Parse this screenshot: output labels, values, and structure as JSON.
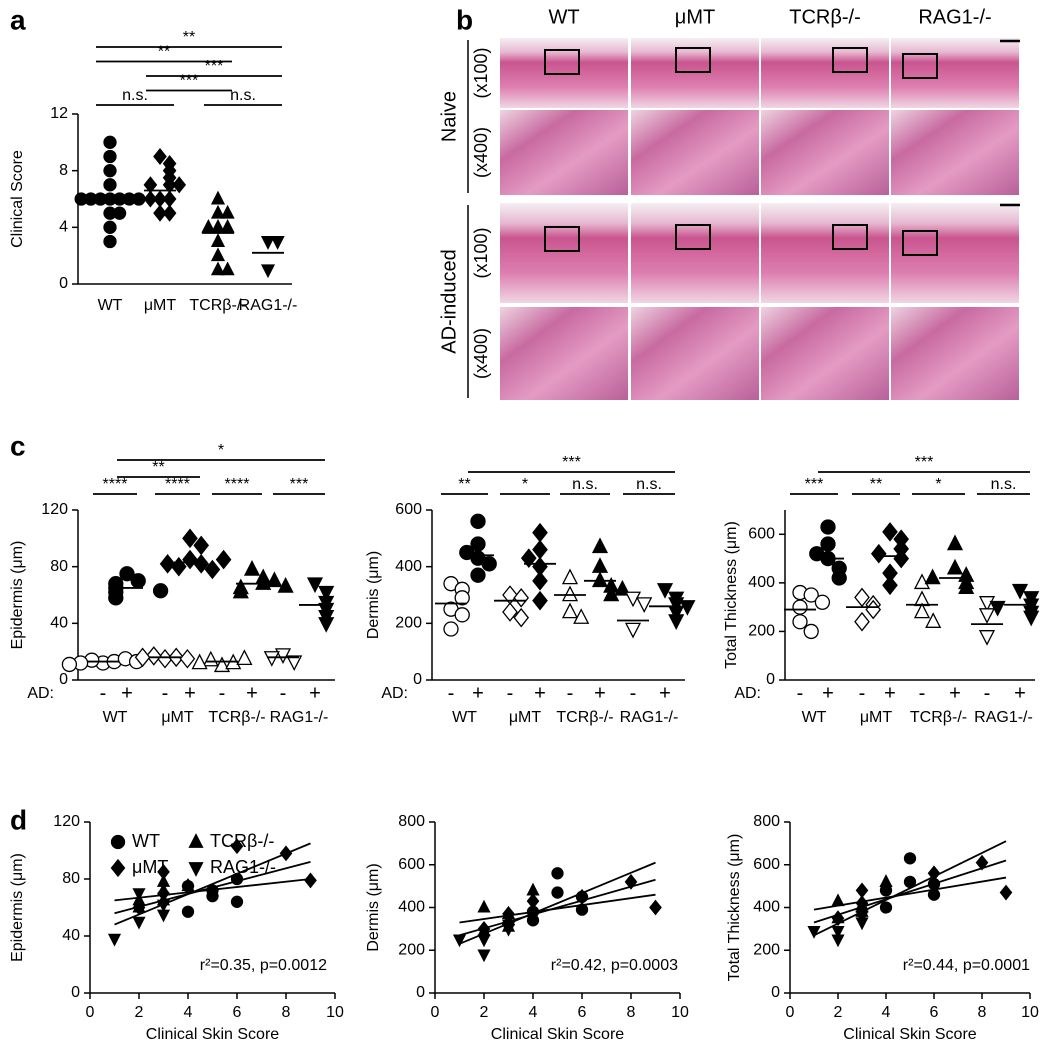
{
  "panel_labels": [
    "a",
    "b",
    "c",
    "d"
  ],
  "histology": {
    "columns": [
      "WT",
      "μMT",
      "TCRβ-/-",
      "RAG1-/-"
    ],
    "rows": [
      {
        "label": "Naive",
        "magnifications": [
          "(x100)",
          "(x400)"
        ]
      },
      {
        "label": "AD-induced",
        "magnifications": [
          "(x100)",
          "(x400)"
        ]
      }
    ]
  },
  "chart_data": [
    {
      "type": "dotplot",
      "ylabel": "Clinical Score",
      "color": "#000000",
      "categories": [
        "WT",
        "μMT",
        "TCRβ-/-",
        "RAG1-/-"
      ],
      "markers": [
        "circle",
        "diamond",
        "triangle-up",
        "triangle-down"
      ],
      "points": [
        [
          10,
          9,
          8,
          7,
          6,
          6,
          6,
          6,
          6,
          6,
          6,
          5,
          5,
          4,
          3
        ],
        [
          9,
          8.5,
          8,
          7.5,
          7,
          7,
          7,
          6,
          6,
          6,
          5,
          5
        ],
        [
          6,
          5,
          5,
          4,
          4,
          4,
          3,
          2,
          1,
          1
        ],
        [
          3,
          3,
          1
        ]
      ],
      "means": [
        5.9,
        6.6,
        3.6,
        2.2
      ],
      "ylim": [
        0,
        12
      ],
      "yticks": [
        0,
        4,
        8,
        12
      ],
      "brackets": [
        {
          "from": 0,
          "to": 1,
          "label": "n.s."
        },
        {
          "from": 2,
          "to": 3,
          "label": "n.s."
        },
        {
          "from": 1,
          "to": 2,
          "label": "***"
        },
        {
          "from": 1,
          "to": 3,
          "label": "***"
        },
        {
          "from": 0,
          "to": 2,
          "label": "**"
        },
        {
          "from": 0,
          "to": 3,
          "label": "**"
        }
      ]
    },
    {
      "type": "grouped-dotplot",
      "ylabel": "Epidermis (μm)",
      "color": "#000000",
      "condition_label": "AD:",
      "conditions": [
        "-",
        "+"
      ],
      "categories": [
        "WT",
        "μMT",
        "TCRβ-/-",
        "RAG1-/-"
      ],
      "markers": [
        "circle",
        "diamond",
        "triangle-up",
        "triangle-down"
      ],
      "points": [
        [
          12,
          13,
          14,
          15,
          12,
          13,
          11
        ],
        [
          75,
          70,
          68,
          65,
          62,
          58,
          63
        ],
        [
          15,
          16,
          17,
          15,
          16
        ],
        [
          100,
          95,
          85,
          82,
          80,
          78,
          82,
          85
        ],
        [
          10,
          12,
          14,
          15,
          12
        ],
        [
          78,
          72,
          68,
          65,
          62,
          70,
          66
        ],
        [
          18,
          13,
          16
        ],
        [
          68,
          62,
          55,
          50,
          45,
          40
        ]
      ],
      "means": [
        13,
        65,
        16,
        83,
        13,
        68,
        16,
        53
      ],
      "ylim": [
        0,
        120
      ],
      "yticks": [
        0,
        40,
        80,
        120
      ],
      "brackets": [
        {
          "from": 0,
          "to": 1,
          "label": "****"
        },
        {
          "from": 2,
          "to": 3,
          "label": "****"
        },
        {
          "from": 4,
          "to": 5,
          "label": "****"
        },
        {
          "from": 6,
          "to": 7,
          "label": "***"
        },
        {
          "from": 1,
          "to": 3,
          "label": "**"
        },
        {
          "from": 1,
          "to": 7,
          "label": "*"
        }
      ]
    },
    {
      "type": "grouped-dotplot",
      "ylabel": "Dermis (μm)",
      "color": "#000000",
      "condition_label": "AD:",
      "conditions": [
        "-",
        "+"
      ],
      "categories": [
        "WT",
        "μMT",
        "TCRβ-/-",
        "RAG1-/-"
      ],
      "markers": [
        "circle",
        "diamond",
        "triangle-up",
        "triangle-down"
      ],
      "points": [
        [
          340,
          320,
          250,
          230,
          180,
          290
        ],
        [
          560,
          480,
          430,
          410,
          370,
          450
        ],
        [
          300,
          290,
          240,
          220
        ],
        [
          520,
          460,
          400,
          350,
          280,
          430
        ],
        [
          360,
          300,
          240,
          220
        ],
        [
          470,
          400,
          350,
          330,
          300,
          320
        ],
        [
          290,
          270,
          180
        ],
        [
          320,
          290,
          270,
          240,
          210,
          260
        ]
      ],
      "means": [
        270,
        440,
        280,
        410,
        300,
        350,
        210,
        260
      ],
      "ylim": [
        0,
        600
      ],
      "yticks": [
        0,
        200,
        400,
        600
      ],
      "brackets": [
        {
          "from": 0,
          "to": 1,
          "label": "**"
        },
        {
          "from": 2,
          "to": 3,
          "label": "*"
        },
        {
          "from": 4,
          "to": 5,
          "label": "n.s."
        },
        {
          "from": 6,
          "to": 7,
          "label": "n.s."
        },
        {
          "from": 1,
          "to": 7,
          "label": "***"
        }
      ]
    },
    {
      "type": "grouped-dotplot",
      "ylabel": "Total Thickness (μm)",
      "color": "#000000",
      "condition_label": "AD:",
      "conditions": [
        "-",
        "+"
      ],
      "categories": [
        "WT",
        "μMT",
        "TCRβ-/-",
        "RAG1-/-"
      ],
      "markers": [
        "circle",
        "diamond",
        "triangle-up",
        "triangle-down"
      ],
      "points": [
        [
          360,
          350,
          300,
          240,
          200,
          320
        ],
        [
          630,
          560,
          500,
          460,
          420,
          520
        ],
        [
          340,
          310,
          290,
          240
        ],
        [
          610,
          580,
          540,
          500,
          440,
          390,
          520
        ],
        [
          400,
          330,
          280,
          240
        ],
        [
          560,
          460,
          430,
          400,
          380,
          420
        ],
        [
          320,
          270,
          180
        ],
        [
          370,
          340,
          310,
          280,
          260,
          300
        ]
      ],
      "means": [
        290,
        500,
        300,
        510,
        310,
        420,
        230,
        310
      ],
      "ylim": [
        0,
        700
      ],
      "yticks": [
        0,
        200,
        400,
        600
      ],
      "brackets": [
        {
          "from": 0,
          "to": 1,
          "label": "***"
        },
        {
          "from": 2,
          "to": 3,
          "label": "**"
        },
        {
          "from": 4,
          "to": 5,
          "label": "*"
        },
        {
          "from": 6,
          "to": 7,
          "label": "n.s."
        },
        {
          "from": 1,
          "to": 7,
          "label": "***"
        }
      ]
    },
    {
      "type": "scatter",
      "xlabel": "Clinical Skin Score",
      "ylabel": "Epidermis (μm)",
      "color": "#000000",
      "legend": true,
      "xlim": [
        0,
        10
      ],
      "xticks": [
        0,
        2,
        4,
        6,
        8,
        10
      ],
      "ylim": [
        0,
        120
      ],
      "yticks": [
        0,
        40,
        80,
        120
      ],
      "series": [
        {
          "name": "WT",
          "marker": "circle",
          "x": [
            4,
            4,
            5,
            5,
            6,
            6
          ],
          "y": [
            57,
            75,
            68,
            72,
            64,
            80
          ]
        },
        {
          "name": "μMT",
          "marker": "diamond",
          "x": [
            2,
            3,
            3,
            4,
            6,
            8,
            9
          ],
          "y": [
            60,
            85,
            70,
            75,
            103,
            98,
            79
          ]
        },
        {
          "name": "TCRβ-/-",
          "marker": "triangle-up",
          "x": [
            2,
            2,
            3,
            3,
            3,
            4
          ],
          "y": [
            65,
            60,
            78,
            65,
            72,
            75
          ]
        },
        {
          "name": "RAG1-/-",
          "marker": "triangle-down",
          "x": [
            1,
            2,
            2,
            3,
            3
          ],
          "y": [
            38,
            50,
            70,
            55,
            62
          ]
        }
      ],
      "fit_lines": [
        {
          "x": [
            1,
            9
          ],
          "y": [
            56,
            92
          ]
        },
        {
          "x": [
            1,
            9
          ],
          "y": [
            48,
            105
          ]
        },
        {
          "x": [
            1,
            9
          ],
          "y": [
            65,
            80
          ]
        }
      ],
      "annotation": "r²=0.35, p=0.0012"
    },
    {
      "type": "scatter",
      "xlabel": "Clinical Skin Score",
      "ylabel": "Dermis (μm)",
      "color": "#000000",
      "legend": false,
      "xlim": [
        0,
        10
      ],
      "xticks": [
        0,
        2,
        4,
        6,
        8,
        10
      ],
      "ylim": [
        0,
        800
      ],
      "yticks": [
        0,
        200,
        400,
        600,
        800
      ],
      "series": [
        {
          "name": "WT",
          "marker": "circle",
          "x": [
            4,
            4,
            5,
            5,
            6,
            6
          ],
          "y": [
            380,
            340,
            470,
            560,
            450,
            390
          ]
        },
        {
          "name": "μMT",
          "marker": "diamond",
          "x": [
            2,
            3,
            3,
            4,
            6,
            8,
            9
          ],
          "y": [
            300,
            330,
            370,
            430,
            450,
            520,
            400
          ]
        },
        {
          "name": "TCRβ-/-",
          "marker": "triangle-up",
          "x": [
            2,
            2,
            3,
            3,
            3,
            4
          ],
          "y": [
            400,
            290,
            340,
            370,
            310,
            480
          ]
        },
        {
          "name": "RAG1-/-",
          "marker": "triangle-down",
          "x": [
            1,
            2,
            2,
            3,
            3
          ],
          "y": [
            250,
            180,
            250,
            300,
            320
          ]
        }
      ],
      "fit_lines": [
        {
          "x": [
            1,
            9
          ],
          "y": [
            270,
            530
          ]
        },
        {
          "x": [
            1,
            9
          ],
          "y": [
            230,
            610
          ]
        },
        {
          "x": [
            1,
            9
          ],
          "y": [
            330,
            460
          ]
        }
      ],
      "annotation": "r²=0.42,  p=0.0003"
    },
    {
      "type": "scatter",
      "xlabel": "Clinical Skin Score",
      "ylabel": "Total Thickness (μm)",
      "color": "#000000",
      "legend": false,
      "xlim": [
        0,
        10
      ],
      "xticks": [
        0,
        2,
        4,
        6,
        8,
        10
      ],
      "ylim": [
        0,
        800
      ],
      "yticks": [
        0,
        200,
        400,
        600,
        800
      ],
      "series": [
        {
          "name": "WT",
          "marker": "circle",
          "x": [
            4,
            4,
            5,
            5,
            6,
            6
          ],
          "y": [
            400,
            480,
            520,
            630,
            510,
            460
          ]
        },
        {
          "name": "μMT",
          "marker": "diamond",
          "x": [
            2,
            3,
            3,
            4,
            6,
            8,
            9
          ],
          "y": [
            350,
            420,
            480,
            500,
            560,
            610,
            470
          ]
        },
        {
          "name": "TCRβ-/-",
          "marker": "triangle-up",
          "x": [
            2,
            2,
            3,
            3,
            3,
            4
          ],
          "y": [
            430,
            350,
            410,
            400,
            380,
            520
          ]
        },
        {
          "name": "RAG1-/-",
          "marker": "triangle-down",
          "x": [
            1,
            2,
            2,
            3,
            3
          ],
          "y": [
            290,
            250,
            290,
            360,
            330
          ]
        }
      ],
      "fit_lines": [
        {
          "x": [
            1,
            9
          ],
          "y": [
            330,
            620
          ]
        },
        {
          "x": [
            1,
            9
          ],
          "y": [
            270,
            710
          ]
        },
        {
          "x": [
            1,
            9
          ],
          "y": [
            390,
            540
          ]
        }
      ],
      "annotation": "r²=0.44, p=0.0001"
    }
  ]
}
